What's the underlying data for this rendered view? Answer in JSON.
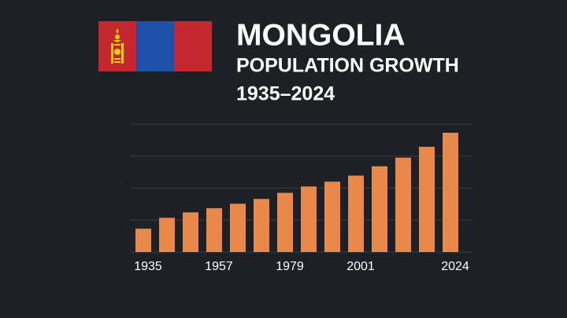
{
  "chart_data": {
    "type": "bar",
    "title": "MONGOLIA",
    "subtitle": "POPULATION GROWTH",
    "period": "1935–2024",
    "categories": [
      "1935",
      null,
      null,
      "1957",
      null,
      null,
      "1979",
      null,
      null,
      "2001",
      null,
      null,
      null,
      "2024"
    ],
    "values": [
      0.73,
      1.07,
      1.24,
      1.37,
      1.51,
      1.66,
      1.85,
      2.05,
      2.2,
      2.39,
      2.68,
      2.95,
      3.29,
      3.73
    ],
    "color": "#e8894a",
    "ylim": [
      0,
      4
    ],
    "yticks": [
      0,
      1,
      2,
      3,
      4
    ],
    "grid": true
  }
}
